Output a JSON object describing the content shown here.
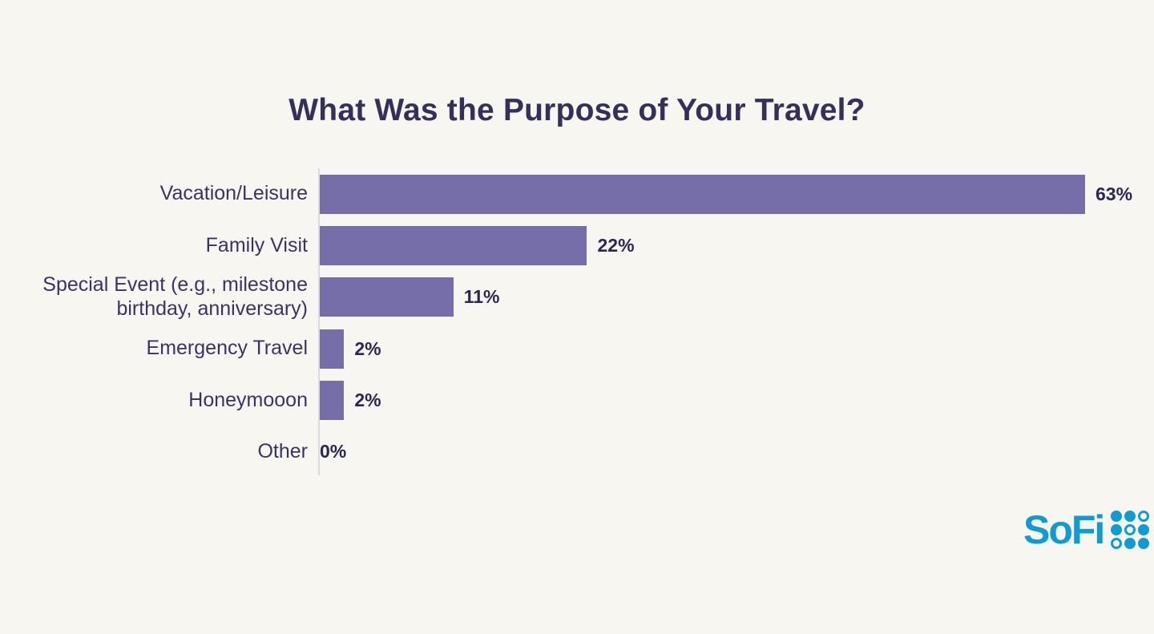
{
  "page": {
    "background_color": "#f7f6f0"
  },
  "chart_data": {
    "type": "bar",
    "orientation": "horizontal",
    "title": "What Was the Purpose of Your Travel?",
    "categories": [
      "Vacation/Leisure",
      "Family Visit",
      "Special Event (e.g., milestone birthday, anniversary)",
      "Emergency Travel",
      "Honeymooon",
      "Other"
    ],
    "values": [
      63,
      22,
      11,
      2,
      2,
      0
    ],
    "value_labels": [
      "63%",
      "22%",
      "11%",
      "2%",
      "2%",
      "0%"
    ],
    "xlabel": "",
    "ylabel": "",
    "xlim": [
      0,
      63
    ],
    "grid": false,
    "legend": false,
    "bar_color": "#756ea9",
    "category_label_color": "#3a3464",
    "value_label_color": "#2b2750",
    "title_color": "#35305a",
    "axis_line_color": "#dcd9df"
  },
  "branding": {
    "logo_text": "SoFi",
    "logo_color": "#0f9cd4",
    "dot_pattern": [
      [
        "filled",
        "filled",
        "outline"
      ],
      [
        "filled",
        "outline",
        "filled"
      ],
      [
        "outline",
        "filled",
        "filled"
      ]
    ]
  }
}
